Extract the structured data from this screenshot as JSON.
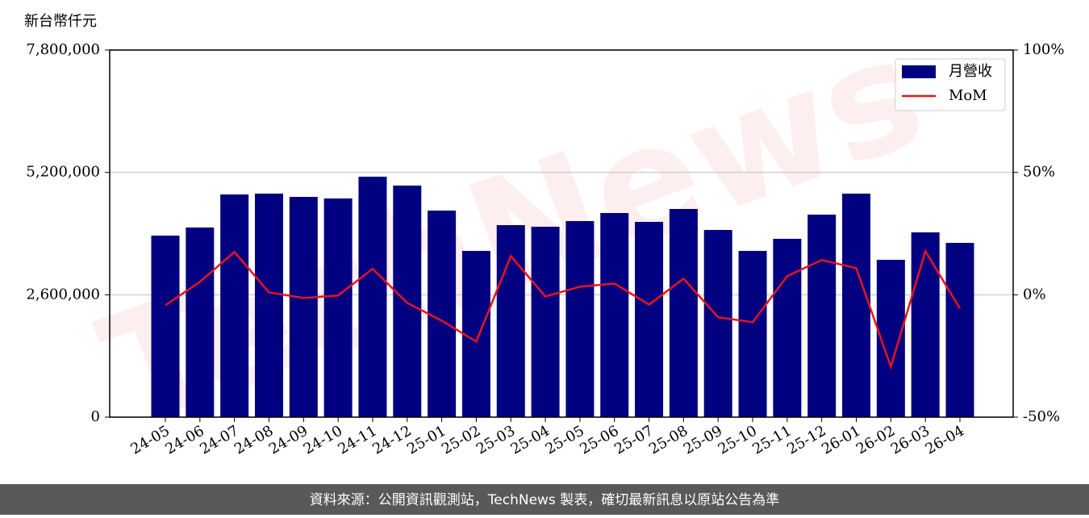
{
  "chart_data": {
    "type": "bar-line",
    "y_label": "新台幣仟元",
    "watermark": "TechNews",
    "footer": "資料來源：公開資訊觀測站，TechNews 製表，確切最新訊息以原站公告為準",
    "categories": [
      "24-05",
      "24-06",
      "24-07",
      "24-08",
      "24-09",
      "24-10",
      "24-11",
      "24-12",
      "25-01",
      "25-02",
      "25-03",
      "25-04",
      "25-05",
      "25-06",
      "25-07",
      "25-08",
      "25-09",
      "25-10",
      "25-11",
      "25-12",
      "26-01",
      "26-02",
      "26-03",
      "26-04"
    ],
    "series": [
      {
        "name": "月營收",
        "type": "bar",
        "color": "#000080",
        "values": [
          3857000,
          4029000,
          4732000,
          4749000,
          4680000,
          4646000,
          5109000,
          4920000,
          4389000,
          3532000,
          4080000,
          4046000,
          4166000,
          4337000,
          4149000,
          4423000,
          3977000,
          3532000,
          3789000,
          4303000,
          4749000,
          3343000,
          3926000,
          3703000
        ]
      },
      {
        "name": "MoM",
        "type": "line",
        "axis": "y2",
        "color": "#e8141a",
        "values": [
          -4.3,
          5.3,
          17.5,
          1.0,
          -1.3,
          -0.3,
          10.6,
          -3.3,
          -10.6,
          -19.1,
          15.8,
          -0.7,
          3.3,
          4.6,
          -4.0,
          6.6,
          -9.2,
          -11.2,
          7.6,
          14.2,
          10.9,
          -29.4,
          17.8,
          -5.6
        ]
      }
    ],
    "ylim": [
      0,
      7800000
    ],
    "yticks": [
      0,
      {
        "value": 2600000,
        "label": "2,600,000"
      },
      {
        "value": 5200000,
        "label": "5,200,000"
      },
      {
        "value": 7800000,
        "label": "7,800,000"
      }
    ],
    "y2lim": [
      -50,
      100
    ],
    "y2ticks": [
      {
        "value": -50,
        "label": "-50%"
      },
      {
        "value": 0,
        "label": "0%"
      },
      {
        "value": 50,
        "label": "50%"
      },
      {
        "value": 100,
        "label": "100%"
      }
    ],
    "grid": true,
    "legend": "upper right"
  }
}
